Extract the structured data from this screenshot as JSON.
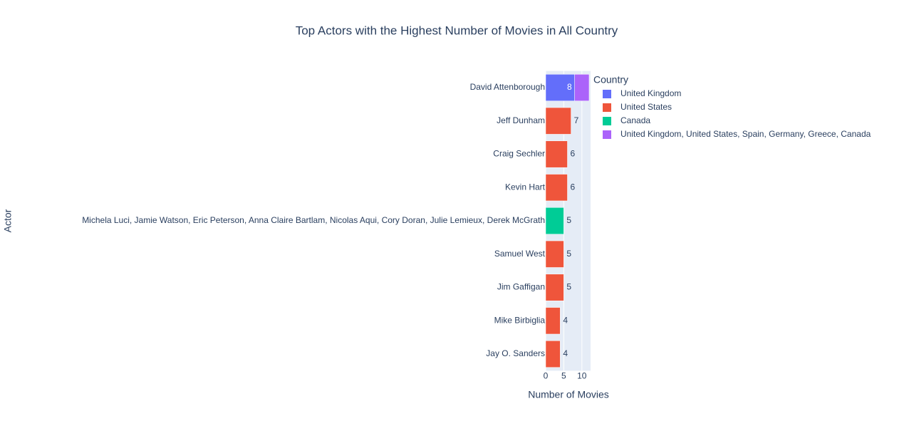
{
  "chart_data": {
    "type": "bar",
    "orientation": "horizontal",
    "barmode": "stack",
    "title": "Top Actors with the Highest Number of Movies in All Country",
    "x_label": "Number of Movies",
    "y_label": "Actor",
    "legend_title": "Country",
    "categories": [
      "David Attenborough",
      "Jeff Dunham",
      "Craig Sechler",
      "Kevin Hart",
      "Michela Luci, Jamie Watson, Eric Peterson, Anna Claire Bartlam, Nicolas Aqui, Cory Doran, Julie Lemieux, Derek McGrath",
      "Samuel West",
      "Jim Gaffigan",
      "Mike Birbiglia",
      "Jay O. Sanders"
    ],
    "series": [
      {
        "name": "United Kingdom",
        "color": "#636efa",
        "values": [
          8,
          null,
          null,
          null,
          null,
          null,
          null,
          null,
          null
        ]
      },
      {
        "name": "United States",
        "color": "#ef553b",
        "values": [
          null,
          7,
          6,
          6,
          null,
          5,
          5,
          4,
          4
        ]
      },
      {
        "name": "Canada",
        "color": "#00cc96",
        "values": [
          null,
          null,
          null,
          null,
          5,
          null,
          null,
          null,
          null
        ]
      },
      {
        "name": "United Kingdom, United States, Spain, Germany, Greece, Canada",
        "color": "#ab63fa",
        "values": [
          4,
          null,
          null,
          null,
          null,
          null,
          null,
          null,
          null
        ]
      }
    ],
    "xlim": [
      0,
      12.4
    ],
    "xticks": [
      0,
      5,
      10
    ],
    "grid": true
  }
}
